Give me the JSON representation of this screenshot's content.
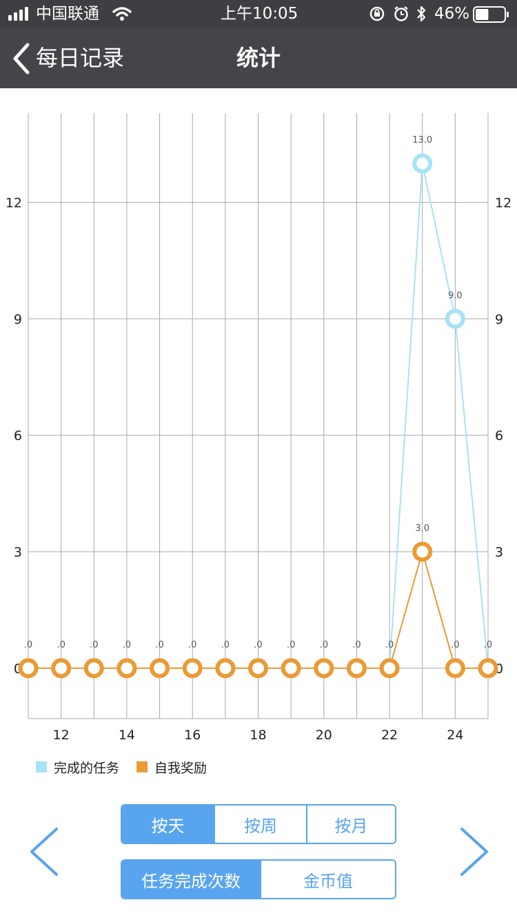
{
  "status_bar": {
    "carrier": "中国联通",
    "time": "上午10:05",
    "battery": "46%",
    "battery_level": 0.46
  },
  "nav": {
    "back_label": "每日记录",
    "title": "统计"
  },
  "colors": {
    "series_tasks": "#a6e3f6",
    "series_reward": "#eb9a35",
    "accent": "#58a4ef",
    "navbar": "#454549"
  },
  "chart_data": {
    "type": "line",
    "x_ticks": [
      "12",
      "14",
      "16",
      "18",
      "20",
      "22",
      "24"
    ],
    "y_ticks": [
      "0",
      "3",
      "6",
      "9",
      "12"
    ],
    "xlim": [
      11,
      25
    ],
    "ylim": [
      -1.3,
      14.3
    ],
    "series": [
      {
        "name": "完成的任务",
        "color": "#a6e3f6",
        "points": [
          {
            "x": 11,
            "y": 0,
            "label": ".0"
          },
          {
            "x": 12,
            "y": 0,
            "label": ".0"
          },
          {
            "x": 13,
            "y": 0,
            "label": ".0"
          },
          {
            "x": 14,
            "y": 0,
            "label": ".0"
          },
          {
            "x": 15,
            "y": 0,
            "label": ".0"
          },
          {
            "x": 16,
            "y": 0,
            "label": ".0"
          },
          {
            "x": 17,
            "y": 0,
            "label": ".0"
          },
          {
            "x": 18,
            "y": 0,
            "label": ".0"
          },
          {
            "x": 19,
            "y": 0,
            "label": ".0"
          },
          {
            "x": 20,
            "y": 0,
            "label": ".0"
          },
          {
            "x": 21,
            "y": 0,
            "label": ".0"
          },
          {
            "x": 22,
            "y": 0,
            "label": ".0"
          },
          {
            "x": 23,
            "y": 13,
            "label": "13.0"
          },
          {
            "x": 24,
            "y": 9,
            "label": "9.0"
          },
          {
            "x": 25,
            "y": 0,
            "label": ".0"
          }
        ]
      },
      {
        "name": "自我奖励",
        "color": "#eb9a35",
        "points": [
          {
            "x": 11,
            "y": 0,
            "label": ".0"
          },
          {
            "x": 12,
            "y": 0,
            "label": ".0"
          },
          {
            "x": 13,
            "y": 0,
            "label": ".0"
          },
          {
            "x": 14,
            "y": 0,
            "label": ".0"
          },
          {
            "x": 15,
            "y": 0,
            "label": ".0"
          },
          {
            "x": 16,
            "y": 0,
            "label": ".0"
          },
          {
            "x": 17,
            "y": 0,
            "label": ".0"
          },
          {
            "x": 18,
            "y": 0,
            "label": ".0"
          },
          {
            "x": 19,
            "y": 0,
            "label": ".0"
          },
          {
            "x": 20,
            "y": 0,
            "label": ".0"
          },
          {
            "x": 21,
            "y": 0,
            "label": ".0"
          },
          {
            "x": 22,
            "y": 0,
            "label": ".0"
          },
          {
            "x": 23,
            "y": 3,
            "label": "3.0"
          },
          {
            "x": 24,
            "y": 0,
            "label": ".0"
          },
          {
            "x": 25,
            "y": 0,
            "label": ".0"
          }
        ]
      }
    ],
    "legend": [
      "完成的任务",
      "自我奖励"
    ],
    "legend_position": "bottom-left",
    "grid": true
  },
  "period_tabs": {
    "items": [
      "按天",
      "按周",
      "按月"
    ],
    "selected": "按天"
  },
  "metric_tabs": {
    "items": [
      "任务完成次数",
      "金币值"
    ],
    "selected": "任务完成次数"
  },
  "icons": {
    "prev": "chevron-left-icon",
    "next": "chevron-right-icon",
    "back": "chevron-left-icon",
    "wifi": "wifi-icon",
    "signal": "signal-bars-icon",
    "rotation_lock": "rotation-lock-icon",
    "alarm": "alarm-clock-icon",
    "bluetooth": "bluetooth-icon",
    "battery": "battery-icon"
  }
}
